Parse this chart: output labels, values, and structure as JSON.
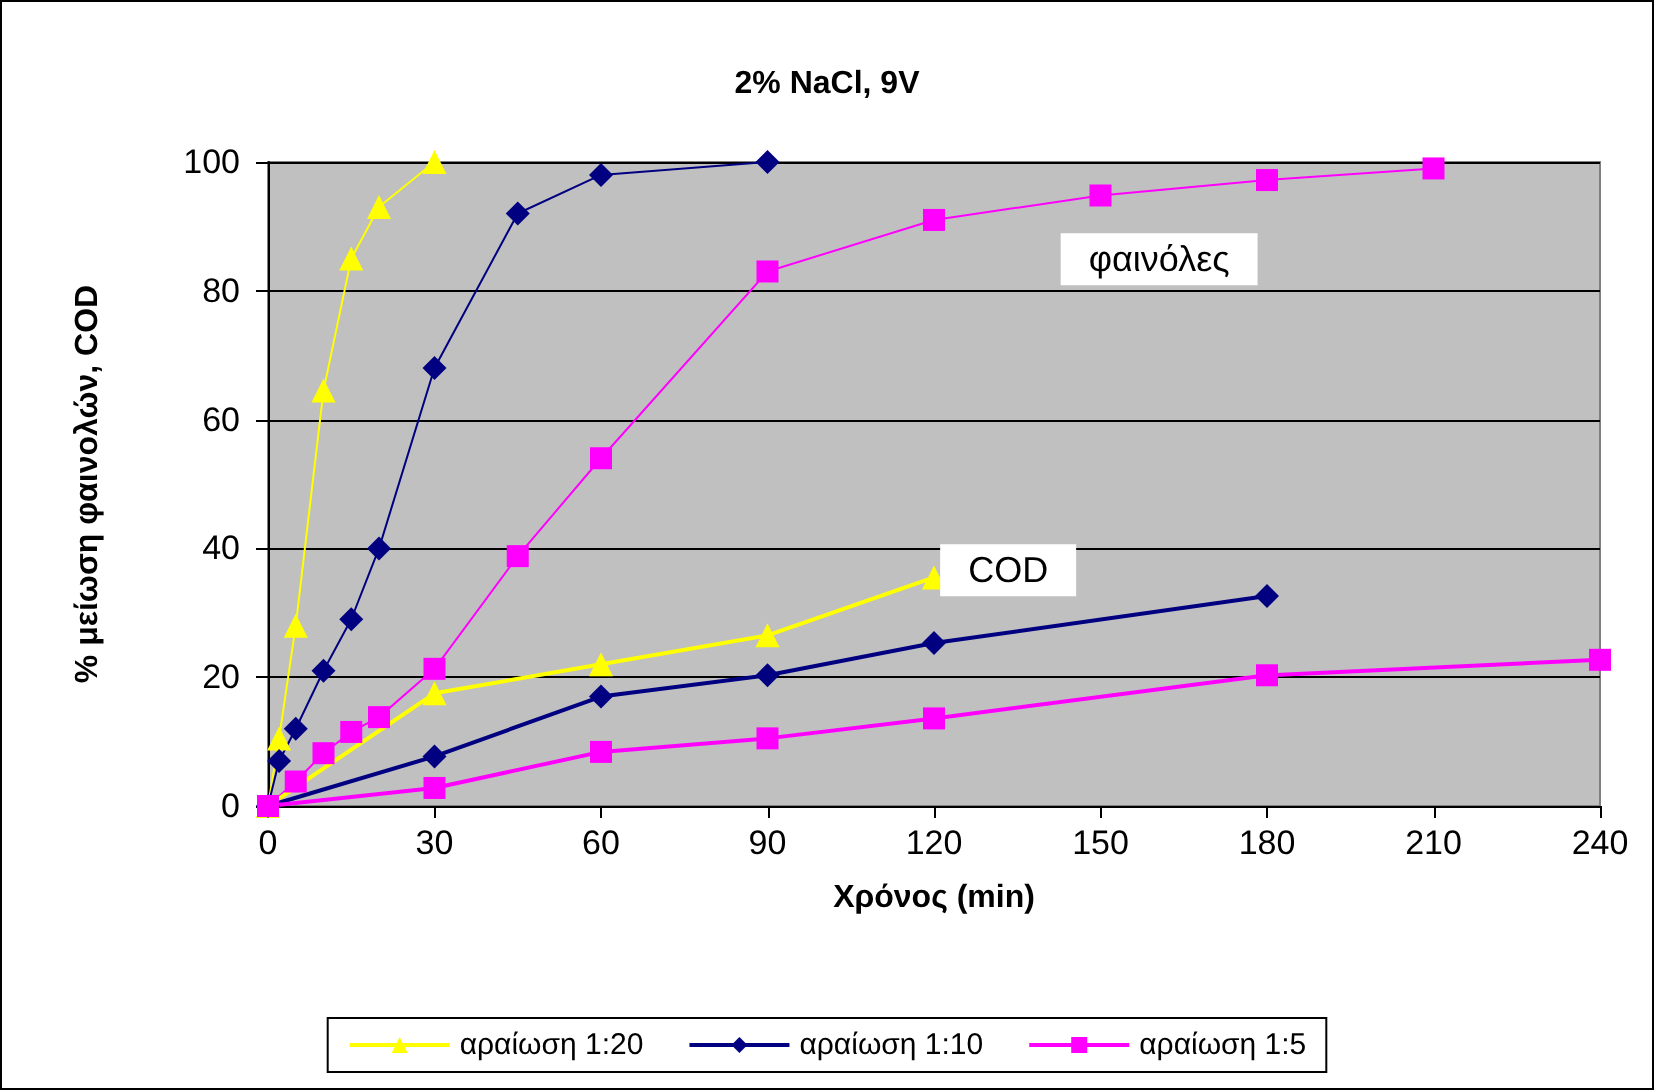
{
  "chart_data": {
    "type": "line",
    "title": "2% NaCl, 9V",
    "xlabel": "Χρόνος (min)",
    "ylabel": "% μείωση φαινολών, COD",
    "xlim": [
      0,
      240
    ],
    "xticks": [
      0,
      30,
      60,
      90,
      120,
      150,
      180,
      210,
      240
    ],
    "ylim": [
      0,
      100
    ],
    "yticks": [
      0,
      20,
      40,
      60,
      80,
      100
    ],
    "grid": "y",
    "legend": "bottom",
    "annotations": [
      "φαινόλες",
      "COD"
    ],
    "series": [
      {
        "name": "αραίωση 1:20",
        "color": "#ffff00",
        "marker": "triangle",
        "x": [
          0,
          2,
          5,
          10,
          15,
          20,
          30
        ],
        "values": [
          0,
          10.5,
          28,
          64.5,
          85,
          93,
          100
        ]
      },
      {
        "name": "αραίωση 1:10",
        "color": "#000080",
        "marker": "diamond",
        "x": [
          0,
          2,
          5,
          10,
          15,
          20,
          30,
          45,
          60,
          90
        ],
        "values": [
          0,
          7,
          12,
          21,
          29,
          40,
          68,
          92,
          98,
          100
        ]
      },
      {
        "name": "αραίωση 1:5",
        "color": "#ff00ff",
        "marker": "square",
        "x": [
          0,
          5,
          10,
          15,
          20,
          30,
          45,
          60,
          90,
          120,
          150,
          180,
          210
        ],
        "values": [
          0,
          3.8,
          8.2,
          11.5,
          13.8,
          21.3,
          38.8,
          54,
          83,
          91,
          94.8,
          97.2,
          99
        ]
      },
      {
        "color": "#ffff00",
        "marker": "triangle",
        "x": [
          0,
          30,
          60,
          90,
          120
        ],
        "values": [
          0,
          17.5,
          22,
          26.5,
          35.5
        ]
      },
      {
        "color": "#000080",
        "marker": "diamond",
        "x": [
          0,
          30,
          60,
          90,
          120,
          180
        ],
        "values": [
          0,
          7.7,
          17,
          20.3,
          25.3,
          32.6
        ]
      },
      {
        "color": "#ff00ff",
        "marker": "square",
        "x": [
          0,
          30,
          60,
          90,
          120,
          180,
          240
        ],
        "values": [
          0,
          2.8,
          8.4,
          10.5,
          13.6,
          20.3,
          22.7
        ]
      }
    ]
  }
}
